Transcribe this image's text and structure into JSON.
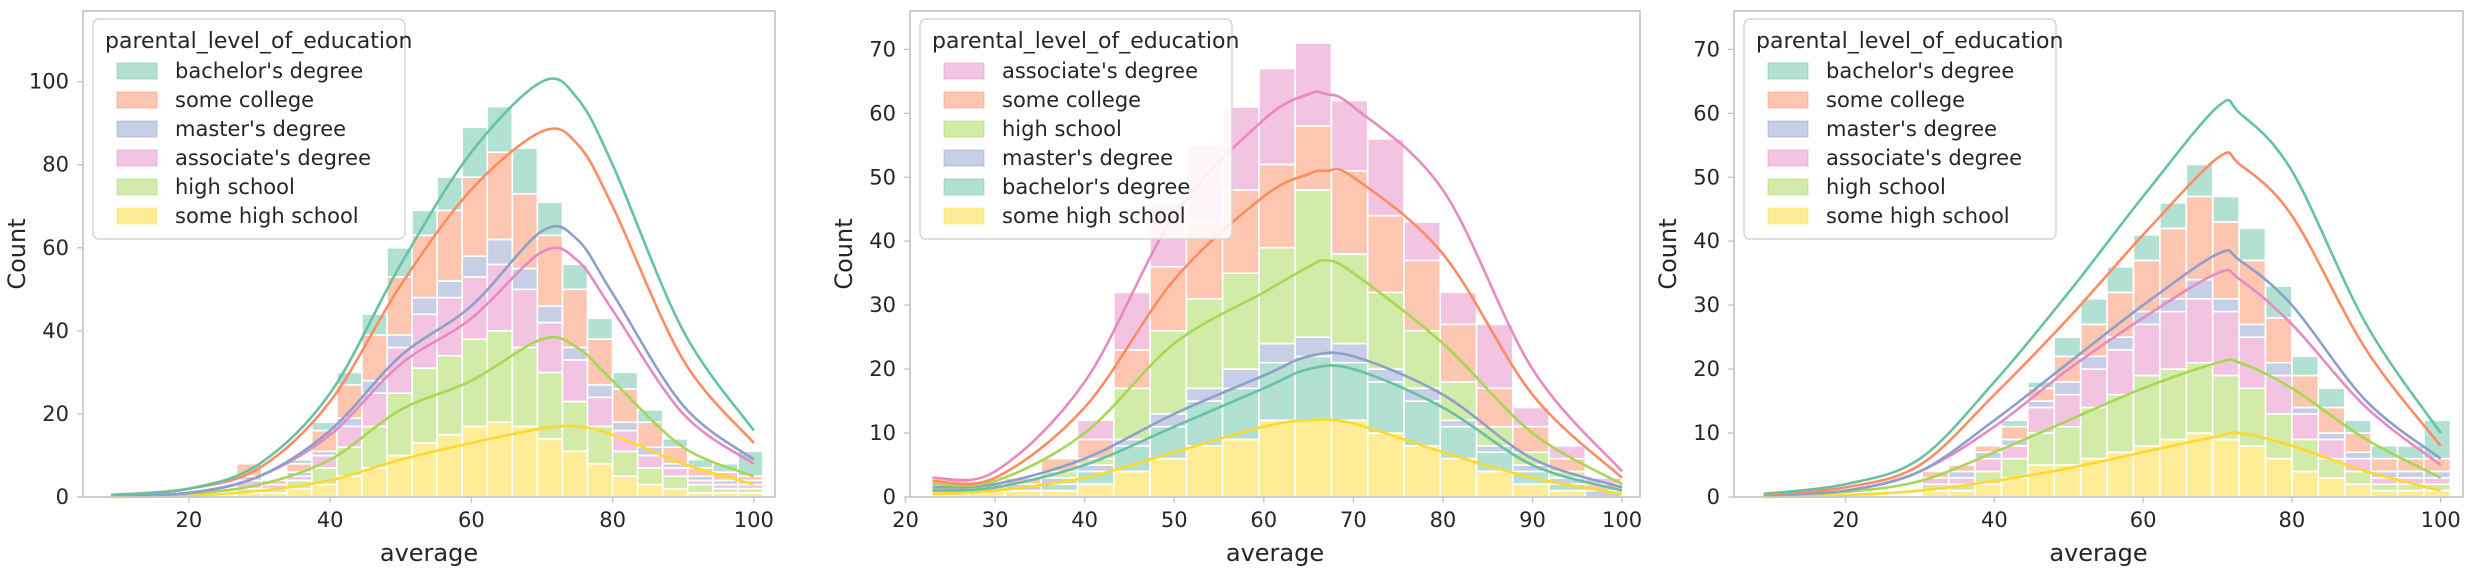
{
  "colors": {
    "bachelor's degree": "#66c2a5",
    "some college": "#fc8d62",
    "master's degree": "#8da0cb",
    "associate's degree": "#e78ac3",
    "high school": "#a6d854",
    "some high school": "#ffd92f"
  },
  "chart_data": [
    {
      "type": "histogram-stacked",
      "xlabel": "average",
      "ylabel": "Count",
      "xlim": [
        5,
        103
      ],
      "ylim": [
        0,
        117
      ],
      "xticks": [
        20,
        40,
        60,
        80,
        100
      ],
      "yticks": [
        0,
        20,
        40,
        60,
        80,
        100
      ],
      "legend_title": "parental_level_of_education",
      "legend_position": "top-left",
      "bin_start": 9,
      "bin_width": 3.55,
      "bins": 26,
      "series": [
        {
          "name": "some high school",
          "values": [
            0,
            0,
            0,
            0,
            0,
            1,
            1,
            2,
            3,
            5,
            7,
            10,
            13,
            15,
            17,
            18,
            17,
            14,
            11,
            8,
            5,
            3,
            2,
            1,
            1,
            1
          ]
        },
        {
          "name": "high school",
          "values": [
            0,
            0,
            0,
            0,
            0,
            1,
            1,
            2,
            4,
            7,
            10,
            15,
            18,
            19,
            21,
            22,
            19,
            16,
            12,
            9,
            6,
            4,
            3,
            2,
            1,
            1
          ]
        },
        {
          "name": "associate's degree",
          "values": [
            0,
            0,
            0,
            0,
            0,
            2,
            1,
            1,
            3,
            5,
            8,
            11,
            13,
            14,
            15,
            16,
            14,
            12,
            10,
            7,
            5,
            3,
            2,
            1,
            1,
            1
          ]
        },
        {
          "name": "master's degree",
          "values": [
            0,
            0,
            0,
            0,
            0,
            1,
            0,
            1,
            1,
            2,
            3,
            3,
            4,
            4,
            5,
            6,
            5,
            4,
            3,
            3,
            2,
            2,
            1,
            1,
            1,
            1
          ]
        },
        {
          "name": "some college",
          "values": [
            0,
            0,
            0,
            0,
            0,
            3,
            1,
            2,
            5,
            8,
            11,
            14,
            15,
            17,
            19,
            21,
            18,
            17,
            14,
            11,
            8,
            6,
            4,
            2,
            2,
            1
          ]
        },
        {
          "name": "bachelor's degree",
          "values": [
            0,
            0,
            0,
            0,
            0,
            0,
            0,
            1,
            2,
            3,
            5,
            7,
            6,
            8,
            12,
            11,
            11,
            8,
            6,
            5,
            4,
            3,
            2,
            2,
            2,
            6
          ]
        }
      ],
      "kde": [
        {
          "name": "some high school",
          "x": [
            9,
            20,
            30,
            40,
            50,
            60,
            70,
            75,
            80,
            90,
            100
          ],
          "y": [
            0,
            0.3,
            1.5,
            4,
            9,
            13,
            16.5,
            17,
            15,
            8,
            3
          ]
        },
        {
          "name": "high school",
          "x": [
            9,
            20,
            30,
            40,
            50,
            60,
            70,
            75,
            80,
            90,
            100
          ],
          "y": [
            0.2,
            0.8,
            3,
            9,
            21,
            28,
            38,
            36,
            28,
            12,
            5
          ]
        },
        {
          "name": "associate's degree",
          "x": [
            9,
            20,
            30,
            40,
            50,
            60,
            70,
            75,
            80,
            90,
            100
          ],
          "y": [
            0.3,
            1,
            5,
            15,
            32,
            43,
            59,
            57,
            45,
            20,
            8
          ]
        },
        {
          "name": "master's degree",
          "x": [
            9,
            20,
            30,
            40,
            50,
            60,
            70,
            75,
            80,
            90,
            100
          ],
          "y": [
            0.3,
            1,
            5,
            16,
            34,
            46,
            64,
            62,
            49,
            22,
            9
          ]
        },
        {
          "name": "some college",
          "x": [
            9,
            20,
            30,
            40,
            50,
            60,
            70,
            75,
            80,
            90,
            100
          ],
          "y": [
            0.5,
            2,
            7,
            23,
            51,
            74,
            88,
            85,
            70,
            33,
            13
          ]
        },
        {
          "name": "bachelor's degree",
          "x": [
            9,
            20,
            30,
            40,
            50,
            60,
            70,
            75,
            80,
            90,
            100
          ],
          "y": [
            0.5,
            2,
            8,
            25,
            56,
            83,
            100,
            96,
            80,
            40,
            16
          ]
        }
      ]
    },
    {
      "type": "histogram-stacked",
      "xlabel": "average",
      "ylabel": "Count",
      "xlim": [
        20.5,
        102
      ],
      "ylim": [
        0,
        76
      ],
      "xticks": [
        20,
        30,
        40,
        50,
        60,
        70,
        80,
        90,
        100
      ],
      "yticks": [
        0,
        10,
        20,
        30,
        40,
        50,
        60,
        70
      ],
      "legend_title": "parental_level_of_education",
      "legend_position": "top-left",
      "bin_start": 23,
      "bin_width": 4.05,
      "bins": 19,
      "series": [
        {
          "name": "some high school",
          "values": [
            1,
            1,
            1,
            1,
            2,
            4,
            6,
            8,
            9,
            12,
            12,
            12,
            10,
            8,
            6,
            4,
            2,
            1,
            0
          ]
        },
        {
          "name": "bachelor's degree",
          "values": [
            0,
            0,
            0,
            1,
            2,
            4,
            5,
            7,
            8,
            9,
            10,
            9,
            8,
            7,
            5,
            3,
            2,
            1,
            0
          ]
        },
        {
          "name": "master's degree",
          "values": [
            0,
            0,
            1,
            1,
            1,
            1,
            2,
            2,
            3,
            3,
            3,
            3,
            2,
            2,
            1,
            1,
            1,
            1,
            1
          ]
        },
        {
          "name": "high school",
          "values": [
            1,
            0,
            0,
            1,
            1,
            8,
            13,
            14,
            15,
            15,
            23,
            14,
            12,
            9,
            6,
            3,
            2,
            1,
            0
          ]
        },
        {
          "name": "some college",
          "values": [
            1,
            1,
            1,
            2,
            3,
            6,
            10,
            12,
            13,
            13,
            10,
            13,
            12,
            11,
            9,
            6,
            4,
            2,
            1
          ]
        },
        {
          "name": "associate's degree",
          "values": [
            0,
            0,
            0,
            0,
            3,
            9,
            10,
            12,
            13,
            15,
            13,
            11,
            12,
            6,
            5,
            10,
            3,
            2,
            1
          ]
        }
      ],
      "kde": [
        {
          "name": "some high school",
          "x": [
            23,
            30,
            40,
            50,
            60,
            65,
            70,
            80,
            90,
            100
          ],
          "y": [
            0.5,
            1,
            3,
            7,
            11,
            12,
            11.5,
            7,
            3,
            0.5
          ]
        },
        {
          "name": "bachelor's degree",
          "x": [
            23,
            30,
            40,
            50,
            60,
            65,
            70,
            80,
            90,
            100
          ],
          "y": [
            1,
            1.5,
            5,
            11,
            17,
            20,
            20,
            14,
            5,
            1
          ]
        },
        {
          "name": "master's degree",
          "x": [
            23,
            30,
            40,
            50,
            60,
            65,
            70,
            80,
            90,
            100
          ],
          "y": [
            1.5,
            2,
            6,
            13,
            19,
            22,
            22,
            16,
            6,
            1.5
          ]
        },
        {
          "name": "high school",
          "x": [
            23,
            30,
            40,
            50,
            60,
            65,
            67,
            70,
            80,
            90,
            100
          ],
          "y": [
            2,
            2.5,
            10,
            24,
            32,
            36,
            37,
            35,
            24,
            10,
            2
          ]
        },
        {
          "name": "some college",
          "x": [
            23,
            30,
            40,
            50,
            60,
            65,
            67,
            70,
            80,
            90,
            100
          ],
          "y": [
            2.5,
            3,
            14,
            34,
            47,
            50.5,
            51,
            50,
            38,
            16,
            3
          ]
        },
        {
          "name": "associate's degree",
          "x": [
            23,
            30,
            40,
            50,
            60,
            65,
            67,
            70,
            80,
            90,
            100
          ],
          "y": [
            3,
            4,
            18,
            44,
            59,
            63,
            63,
            61,
            48,
            20,
            4
          ]
        }
      ]
    },
    {
      "type": "histogram-stacked",
      "xlabel": "average",
      "ylabel": "Count",
      "xlim": [
        5,
        103
      ],
      "ylim": [
        0,
        76
      ],
      "xticks": [
        20,
        40,
        60,
        80,
        100
      ],
      "yticks": [
        0,
        10,
        20,
        30,
        40,
        50,
        60,
        70
      ],
      "legend_title": "parental_level_of_education",
      "legend_position": "top-left",
      "bin_start": 9,
      "bin_width": 3.55,
      "bins": 26,
      "series": [
        {
          "name": "some high school",
          "values": [
            0,
            0,
            0,
            0,
            0,
            0,
            1,
            1,
            2,
            3,
            5,
            5,
            6,
            7,
            8,
            9,
            10,
            9,
            8,
            6,
            4,
            3,
            2,
            1,
            1,
            1
          ]
        },
        {
          "name": "high school",
          "values": [
            0,
            0,
            0,
            0,
            0,
            0,
            1,
            1,
            2,
            3,
            5,
            6,
            8,
            9,
            11,
            11,
            11,
            10,
            9,
            7,
            5,
            3,
            2,
            1,
            1,
            1
          ]
        },
        {
          "name": "associate's degree",
          "values": [
            0,
            0,
            0,
            0,
            0,
            0,
            1,
            1,
            2,
            2,
            4,
            5,
            6,
            7,
            8,
            9,
            10,
            10,
            8,
            6,
            4,
            3,
            2,
            1,
            1,
            1
          ]
        },
        {
          "name": "master's degree",
          "values": [
            0,
            0,
            0,
            0,
            0,
            0,
            0,
            1,
            1,
            1,
            1,
            2,
            2,
            2,
            2,
            2,
            3,
            2,
            2,
            2,
            1,
            1,
            1,
            1,
            1,
            1
          ]
        },
        {
          "name": "some college",
          "values": [
            0,
            0,
            0,
            0,
            0,
            0,
            1,
            1,
            1,
            2,
            2,
            4,
            5,
            7,
            8,
            11,
            13,
            12,
            10,
            7,
            5,
            4,
            3,
            2,
            2,
            2
          ]
        },
        {
          "name": "bachelor's degree",
          "values": [
            0,
            0,
            0,
            0,
            0,
            0,
            0,
            0,
            0,
            1,
            1,
            3,
            4,
            4,
            4,
            4,
            5,
            4,
            5,
            5,
            3,
            3,
            2,
            2,
            2,
            6
          ]
        }
      ],
      "kde": [
        {
          "name": "some high school",
          "x": [
            9,
            20,
            30,
            40,
            50,
            60,
            70,
            73,
            80,
            90,
            100
          ],
          "y": [
            0,
            0.3,
            1,
            2.5,
            4.5,
            7,
            9.5,
            10,
            8,
            4,
            1
          ]
        },
        {
          "name": "high school",
          "x": [
            9,
            20,
            30,
            40,
            50,
            60,
            70,
            73,
            80,
            90,
            100
          ],
          "y": [
            0.2,
            0.8,
            2.5,
            7,
            12,
            17,
            21,
            21,
            17,
            9,
            3
          ]
        },
        {
          "name": "associate's degree",
          "x": [
            9,
            20,
            30,
            40,
            50,
            60,
            70,
            73,
            80,
            90,
            100
          ],
          "y": [
            0.3,
            1,
            4,
            11,
            20,
            28,
            35,
            34,
            27,
            14,
            5
          ]
        },
        {
          "name": "master's degree",
          "x": [
            9,
            20,
            30,
            40,
            50,
            60,
            70,
            73,
            80,
            90,
            100
          ],
          "y": [
            0.3,
            1,
            4,
            12,
            21,
            30,
            38,
            37,
            30,
            15,
            6
          ]
        },
        {
          "name": "some college",
          "x": [
            9,
            20,
            30,
            40,
            50,
            60,
            70,
            73,
            80,
            90,
            100
          ],
          "y": [
            0.4,
            1.5,
            5,
            16,
            28,
            41,
            53,
            52,
            44,
            23,
            8
          ]
        },
        {
          "name": "bachelor's degree",
          "x": [
            9,
            20,
            30,
            40,
            50,
            60,
            70,
            73,
            80,
            90,
            100
          ],
          "y": [
            0.5,
            2,
            6,
            18,
            32,
            47,
            61,
            60,
            51,
            27,
            10
          ]
        }
      ]
    }
  ],
  "legends": [
    [
      "bachelor's degree",
      "some college",
      "master's degree",
      "associate's degree",
      "high school",
      "some high school"
    ],
    [
      "associate's degree",
      "some college",
      "high school",
      "master's degree",
      "bachelor's degree",
      "some high school"
    ],
    [
      "bachelor's degree",
      "some college",
      "master's degree",
      "associate's degree",
      "high school",
      "some high school"
    ]
  ]
}
